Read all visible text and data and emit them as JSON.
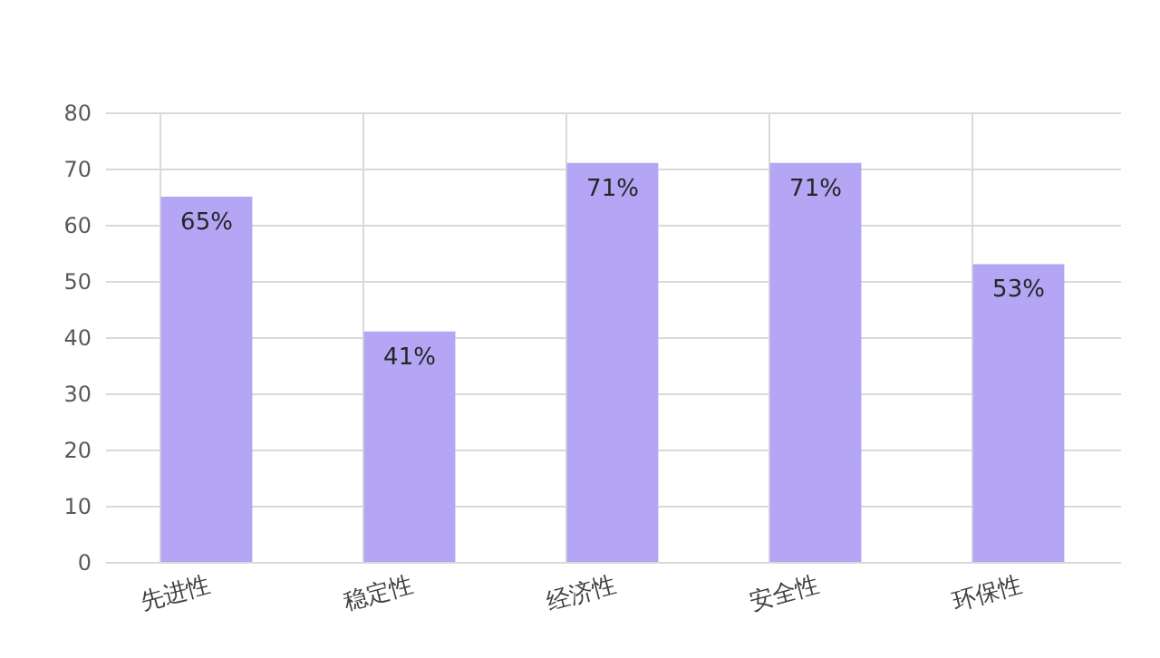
{
  "chart_data": {
    "type": "bar",
    "categories": [
      "先进性",
      "稳定性",
      "经济性",
      "安全性",
      "环保性"
    ],
    "values": [
      65,
      41,
      71,
      71,
      53
    ],
    "value_labels": [
      "65%",
      "41%",
      "71%",
      "71%",
      "53%"
    ],
    "color": "#b4a5f5",
    "ylim": [
      0,
      80
    ],
    "yticks": [
      0,
      10,
      20,
      30,
      40,
      50,
      60,
      70,
      80
    ],
    "grid": true
  }
}
